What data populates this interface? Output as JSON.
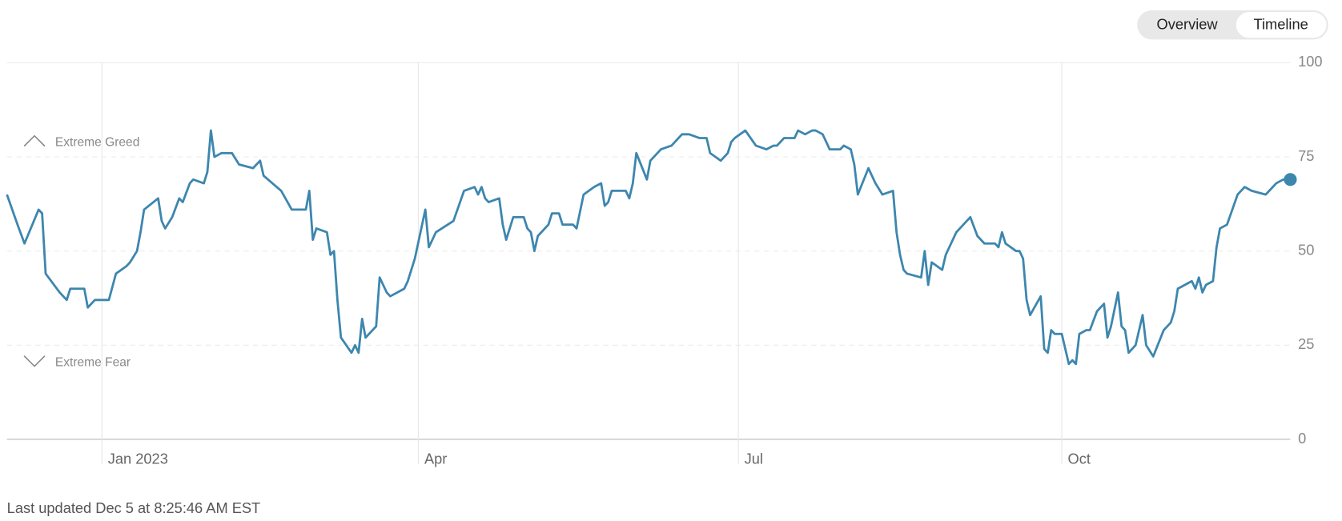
{
  "chart_data": {
    "type": "line",
    "tabs": [
      "Overview",
      "Timeline"
    ],
    "selected_tab": 1,
    "annotations": [
      "Extreme Greed",
      "Extreme Fear"
    ],
    "footer": "Last updated Dec 5 at 8:25:46 AM EST",
    "grid": true,
    "xlim": [
      -27,
      338
    ],
    "xticks": [
      {
        "value": 0,
        "label": "Jan 2023"
      },
      {
        "value": 90,
        "label": "Apr"
      },
      {
        "value": 181,
        "label": "Jul"
      },
      {
        "value": 273,
        "label": "Oct"
      }
    ],
    "ylim": [
      0,
      100
    ],
    "yticks": [
      0,
      25,
      50,
      75,
      100
    ],
    "series": [
      {
        "color": "#3d86ae",
        "x": [
          -27,
          -24,
          -22,
          -18,
          -17,
          -16,
          -12,
          -10,
          -9,
          -5,
          -4,
          -2,
          2,
          4,
          7,
          8,
          10,
          11,
          12,
          16,
          17,
          18,
          20,
          22,
          23,
          25,
          26,
          29,
          30,
          31,
          32,
          34,
          37,
          39,
          43,
          45,
          46,
          51,
          54,
          58,
          59,
          60,
          61,
          64,
          65,
          66,
          67,
          68,
          71,
          72,
          73,
          74,
          75,
          78,
          79,
          81,
          82,
          86,
          87,
          89,
          92,
          93,
          95,
          100,
          103,
          106,
          107,
          108,
          109,
          110,
          113,
          114,
          115,
          117,
          118,
          120,
          121,
          122,
          123,
          124,
          127,
          128,
          130,
          131,
          134,
          135,
          137,
          140,
          142,
          143,
          144,
          145,
          149,
          150,
          151,
          152,
          155,
          156,
          159,
          162,
          164,
          165,
          167,
          170,
          172,
          173,
          176,
          178,
          179,
          180,
          183,
          186,
          189,
          191,
          192,
          194,
          197,
          198,
          200,
          202,
          203,
          205,
          207,
          210,
          211,
          213,
          214,
          215,
          218,
          220,
          222,
          225,
          226,
          227,
          228,
          229,
          233,
          234,
          235,
          236,
          239,
          240,
          243,
          247,
          249,
          251,
          254,
          255,
          256,
          257,
          260,
          261,
          262,
          263,
          264,
          267,
          268,
          269,
          270,
          271,
          273,
          275,
          276,
          277,
          278,
          280,
          281,
          283,
          285,
          286,
          287,
          289,
          290,
          291,
          292,
          294,
          296,
          297,
          299,
          302,
          304,
          305,
          306,
          310,
          311,
          312,
          313,
          314,
          316,
          317,
          318,
          320,
          323,
          325,
          327,
          331,
          332,
          334,
          336,
          338
        ],
        "values": [
          65,
          57,
          52,
          61,
          60,
          44,
          39,
          37,
          40,
          40,
          35,
          37,
          37,
          44,
          46,
          47,
          50,
          55,
          61,
          64,
          58,
          56,
          59,
          64,
          63,
          68,
          69,
          68,
          71,
          82,
          75,
          76,
          76,
          73,
          72,
          74,
          70,
          66,
          61,
          61,
          66,
          53,
          56,
          55,
          49,
          50,
          37,
          27,
          23,
          25,
          23,
          32,
          27,
          30,
          43,
          39,
          38,
          40,
          42,
          48,
          61,
          51,
          55,
          58,
          66,
          67,
          65,
          67,
          64,
          63,
          64,
          57,
          53,
          59,
          59,
          59,
          56,
          55,
          50,
          54,
          57,
          60,
          60,
          57,
          57,
          56,
          65,
          67,
          68,
          62,
          63,
          66,
          66,
          64,
          68,
          76,
          69,
          74,
          77,
          78,
          80,
          81,
          81,
          80,
          80,
          76,
          74,
          76,
          79,
          80,
          82,
          78,
          77,
          78,
          78,
          80,
          80,
          82,
          81,
          82,
          82,
          81,
          77,
          77,
          78,
          77,
          73,
          65,
          72,
          68,
          65,
          66,
          55,
          49,
          45,
          44,
          43,
          50,
          41,
          47,
          45,
          49,
          55,
          59,
          54,
          52,
          52,
          51,
          55,
          52,
          50,
          50,
          48,
          37,
          33,
          38,
          24,
          23,
          29,
          28,
          28,
          20,
          21,
          20,
          28,
          29,
          29,
          34,
          36,
          27,
          30,
          39,
          30,
          29,
          23,
          25,
          33,
          25,
          22,
          29,
          31,
          34,
          40,
          42,
          40,
          43,
          39,
          41,
          42,
          51,
          56,
          57,
          65,
          67,
          66,
          65,
          66,
          68,
          69,
          69
        ]
      }
    ]
  }
}
